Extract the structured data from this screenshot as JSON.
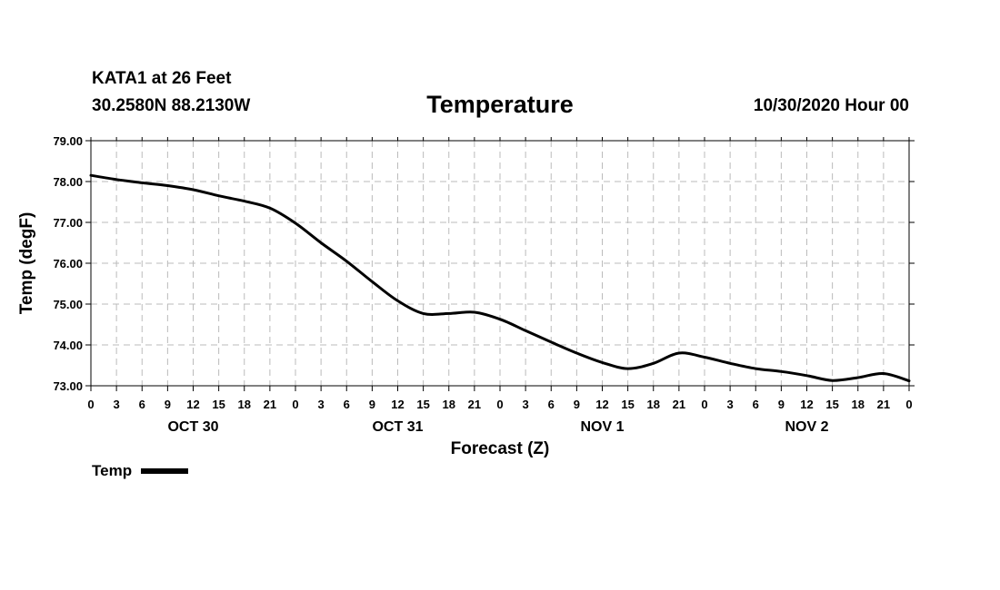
{
  "header": {
    "station": "KATA1 at 26 Feet",
    "coords": "30.2580N 88.2130W",
    "title": "Temperature",
    "datetime": "10/30/2020 Hour 00"
  },
  "chart_data": {
    "type": "line",
    "title": "Temperature",
    "xlabel": "Forecast (Z)",
    "ylabel": "Temp (degF)",
    "xlim": [
      0,
      96
    ],
    "ylim": [
      73.0,
      79.0
    ],
    "grid": true,
    "y_ticks": [
      "73.00",
      "74.00",
      "75.00",
      "76.00",
      "77.00",
      "78.00",
      "79.00"
    ],
    "x_tick_labels": [
      "0",
      "3",
      "6",
      "9",
      "12",
      "15",
      "18",
      "21",
      "0",
      "3",
      "6",
      "9",
      "12",
      "15",
      "18",
      "21",
      "0",
      "3",
      "6",
      "9",
      "12",
      "15",
      "18",
      "21",
      "0",
      "3",
      "6",
      "9",
      "12",
      "15",
      "18",
      "21",
      "0"
    ],
    "day_labels": [
      {
        "label": "OCT 30",
        "hour": 12
      },
      {
        "label": "OCT 31",
        "hour": 36
      },
      {
        "label": "NOV 1",
        "hour": 60
      },
      {
        "label": "NOV 2",
        "hour": 84
      }
    ],
    "legend_position": "bottom-left",
    "series": [
      {
        "name": "Temp",
        "x": [
          0,
          3,
          6,
          9,
          12,
          15,
          18,
          21,
          24,
          27,
          30,
          33,
          36,
          39,
          42,
          45,
          48,
          51,
          54,
          57,
          60,
          63,
          66,
          69,
          72,
          75,
          78,
          81,
          84,
          87,
          90,
          93,
          96
        ],
        "values": [
          78.15,
          78.05,
          77.97,
          77.9,
          77.8,
          77.65,
          77.52,
          77.35,
          76.98,
          76.5,
          76.05,
          75.55,
          75.08,
          74.77,
          74.77,
          74.8,
          74.63,
          74.35,
          74.07,
          73.8,
          73.57,
          73.42,
          73.55,
          73.8,
          73.7,
          73.55,
          73.42,
          73.35,
          73.25,
          73.13,
          73.2,
          73.3,
          73.12
        ]
      }
    ]
  },
  "legend": {
    "label": "Temp"
  }
}
